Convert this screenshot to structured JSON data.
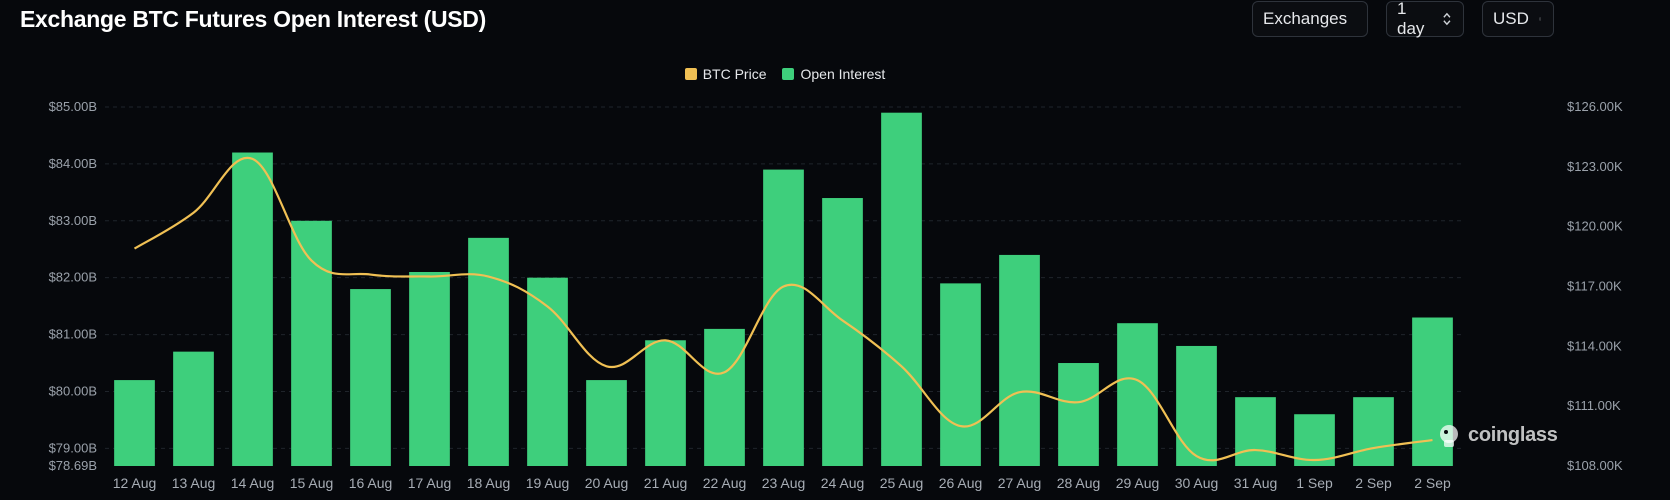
{
  "header": {
    "title": "Exchange BTC Futures Open Interest (USD)",
    "selects": [
      {
        "name": "exchanges-select",
        "value": "Exchanges"
      },
      {
        "name": "interval-select",
        "value": "1 day"
      },
      {
        "name": "currency-select",
        "value": "USD"
      }
    ]
  },
  "legend": [
    {
      "label": "BTC Price",
      "color": "#f0c054"
    },
    {
      "label": "Open Interest",
      "color": "#3ecf7c"
    }
  ],
  "watermark": "coinglass",
  "chart_data": {
    "type": "bar",
    "title": "Exchange BTC Futures Open Interest (USD)",
    "categories": [
      "12 Aug",
      "13 Aug",
      "14 Aug",
      "15 Aug",
      "16 Aug",
      "17 Aug",
      "18 Aug",
      "19 Aug",
      "20 Aug",
      "21 Aug",
      "22 Aug",
      "23 Aug",
      "24 Aug",
      "25 Aug",
      "26 Aug",
      "27 Aug",
      "28 Aug",
      "29 Aug",
      "30 Aug",
      "31 Aug",
      "1 Sep",
      "2 Sep",
      "2 Sep"
    ],
    "series": [
      {
        "name": "Open Interest",
        "type": "bar",
        "axis": "left",
        "color": "#3ecf7c",
        "values": [
          80.2,
          80.7,
          84.2,
          83.0,
          81.8,
          82.1,
          82.7,
          82.0,
          80.2,
          80.9,
          81.1,
          83.9,
          83.4,
          84.9,
          81.9,
          82.4,
          80.5,
          81.2,
          80.8,
          79.9,
          79.6,
          79.9,
          81.3
        ]
      },
      {
        "name": "BTC Price",
        "type": "line",
        "axis": "right",
        "color": "#f0c054",
        "values": [
          118.9,
          120.7,
          123.4,
          118.3,
          117.6,
          117.5,
          117.5,
          116.0,
          113.0,
          114.3,
          112.7,
          117.0,
          115.3,
          113.0,
          110.0,
          111.7,
          111.2,
          112.3,
          108.5,
          108.8,
          108.3,
          108.9,
          109.3
        ]
      }
    ],
    "y_left": {
      "ticks": [
        "$78.69B",
        "$79.00B",
        "$80.00B",
        "$81.00B",
        "$82.00B",
        "$83.00B",
        "$84.00B",
        "$85.00B"
      ],
      "range": [
        78.69,
        85.0
      ]
    },
    "y_right": {
      "ticks": [
        "$108.00K",
        "$111.00K",
        "$114.00K",
        "$117.00K",
        "$120.00K",
        "$123.00K",
        "$126.00K"
      ],
      "range": [
        108.0,
        126.0
      ]
    },
    "grid": true,
    "legend_position": "top-center"
  }
}
